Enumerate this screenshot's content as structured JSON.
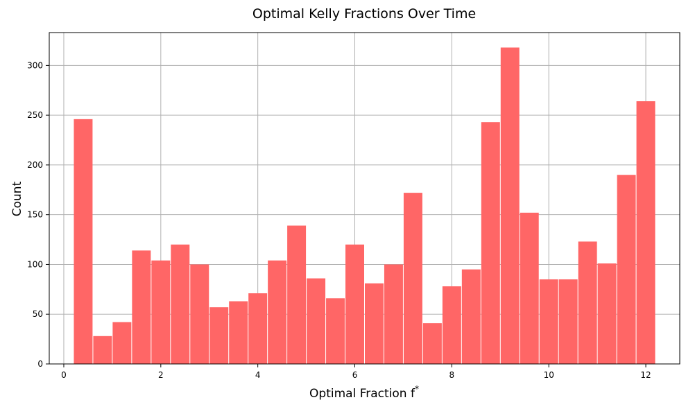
{
  "chart_data": {
    "type": "histogram",
    "title": "Optimal Kelly Fractions Over Time",
    "xlabel": "Optimal Fraction f",
    "xlabel_superscript": "*",
    "ylabel": "Count",
    "xlim": [
      -0.3,
      12.7
    ],
    "ylim": [
      0,
      333
    ],
    "x_ticks": [
      0,
      2,
      4,
      6,
      8,
      10,
      12
    ],
    "y_ticks": [
      0,
      50,
      100,
      150,
      200,
      250,
      300
    ],
    "grid": true,
    "bar_color": "#ff6666",
    "bin_start": 0.2,
    "bin_width": 0.4,
    "values": [
      246,
      28,
      42,
      114,
      104,
      120,
      100,
      57,
      63,
      71,
      104,
      139,
      86,
      66,
      120,
      81,
      100,
      172,
      41,
      78,
      95,
      243,
      318,
      152,
      85,
      85,
      123,
      101,
      190,
      264
    ]
  }
}
